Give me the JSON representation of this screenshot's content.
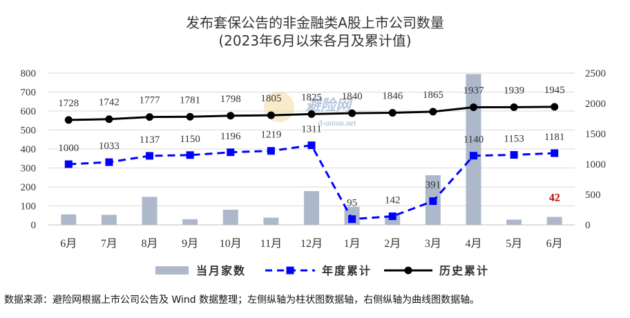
{
  "title": "发布套保公告的非金融类A股上市公司数量",
  "subtitle": "(2023年6月以来各月及累计值)",
  "watermark": {
    "text": "避险网",
    "url": "d-union.net"
  },
  "source_note": "数据来源：避险网根据上市公司公告及 Wind 数据整理；左侧纵轴为柱状图数据轴，右侧纵轴为曲线图数据轴。",
  "chart_data": {
    "type": "bar+line",
    "categories": [
      "6月",
      "7月",
      "8月",
      "9月",
      "10月",
      "11月",
      "12月",
      "1月",
      "2月",
      "3月",
      "4月",
      "5月",
      "6月"
    ],
    "left_axis": {
      "ylim": [
        0,
        800
      ],
      "ticks": [
        "0",
        "100",
        "200",
        "300",
        "400",
        "500",
        "600",
        "700",
        "800"
      ]
    },
    "right_axis": {
      "ylim": [
        0,
        2500
      ],
      "ticks": [
        "0",
        "500",
        "1000",
        "1500",
        "2000",
        "2500"
      ]
    },
    "grid": true,
    "legend_position": "bottom",
    "series": [
      {
        "name": "当月家数",
        "kind": "bar",
        "axis": "left",
        "color": "#adb9ca",
        "values": [
          55,
          53,
          148,
          30,
          80,
          38,
          178,
          95,
          50,
          262,
          795,
          28,
          42
        ],
        "labels": [
          "",
          "",
          "",
          "",
          "",
          "",
          "",
          "",
          "",
          "",
          "",
          "",
          "42"
        ],
        "label_color": "#c00000"
      },
      {
        "name": "年度累计",
        "kind": "line-dashed",
        "axis": "right",
        "color": "#0000ff",
        "values": [
          1000,
          1033,
          1137,
          1150,
          1196,
          1219,
          1311,
          95,
          142,
          391,
          1140,
          1153,
          1181
        ],
        "labels": [
          "1000",
          "1033",
          "1137",
          "1150",
          "1196",
          "1219",
          "1311",
          "95",
          "142",
          "391",
          "1140",
          "1153",
          "1181"
        ]
      },
      {
        "name": "历史累计",
        "kind": "line",
        "axis": "right",
        "color": "#000000",
        "values": [
          1728,
          1742,
          1777,
          1781,
          1798,
          1805,
          1825,
          1840,
          1846,
          1865,
          1937,
          1939,
          1945
        ],
        "labels": [
          "1728",
          "1742",
          "1777",
          "1781",
          "1798",
          "1805",
          "1825",
          "1840",
          "1846",
          "1865",
          "1937",
          "1939",
          "1945"
        ]
      }
    ]
  }
}
